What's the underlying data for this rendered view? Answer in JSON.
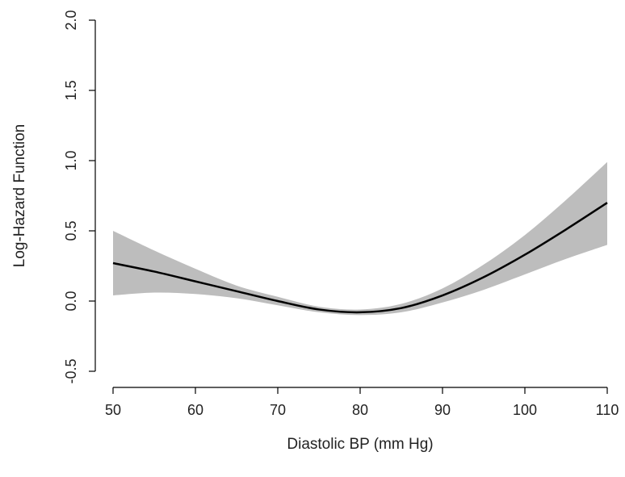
{
  "chart_data": {
    "type": "line",
    "title": "",
    "xlabel": "Diastolic BP (mm Hg)",
    "ylabel": "Log-Hazard Function",
    "xlim": [
      50,
      110
    ],
    "ylim": [
      -0.5,
      2.0
    ],
    "x_ticks": [
      "50",
      "60",
      "70",
      "80",
      "90",
      "100",
      "110"
    ],
    "y_ticks": [
      "-0.5",
      "0.0",
      "0.5",
      "1.0",
      "1.5",
      "2.0"
    ],
    "grid": false,
    "legend": "none",
    "colors": {
      "line": "#000000",
      "band": "#bdbdbd"
    },
    "series": [
      {
        "kind": "line",
        "x": [
          50,
          55,
          60,
          65,
          70,
          75,
          80,
          85,
          90,
          95,
          100,
          105,
          110
        ],
        "y": [
          0.27,
          0.21,
          0.14,
          0.07,
          0.0,
          -0.06,
          -0.08,
          -0.05,
          0.04,
          0.17,
          0.33,
          0.51,
          0.7
        ]
      },
      {
        "kind": "band",
        "x": [
          50,
          55,
          60,
          65,
          70,
          75,
          80,
          85,
          90,
          95,
          100,
          105,
          110
        ],
        "lower": [
          0.04,
          0.06,
          0.05,
          0.02,
          -0.03,
          -0.08,
          -0.1,
          -0.08,
          -0.01,
          0.08,
          0.19,
          0.3,
          0.4
        ],
        "upper": [
          0.5,
          0.36,
          0.23,
          0.11,
          0.03,
          -0.04,
          -0.06,
          -0.02,
          0.09,
          0.26,
          0.47,
          0.72,
          0.99
        ]
      }
    ]
  }
}
